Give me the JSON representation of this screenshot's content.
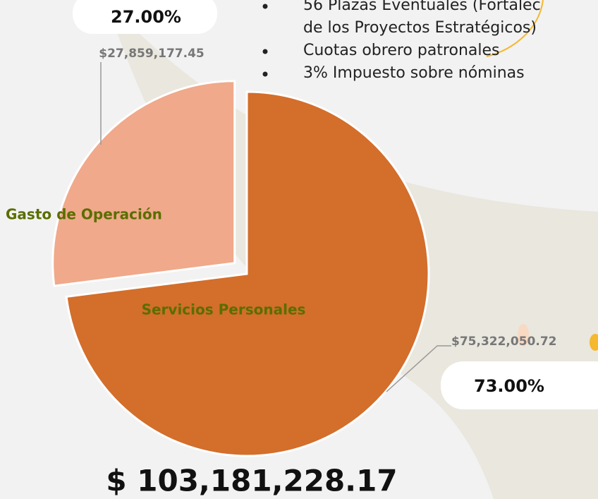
{
  "chart_data": {
    "type": "pie",
    "categories": [
      "Servicios Personales",
      "Gasto de Operación"
    ],
    "values": [
      73,
      27
    ],
    "value_labels": [
      "73.00%",
      "27.00%"
    ],
    "amount_labels": [
      "$75,322,050.72",
      "$27,859,177.45"
    ],
    "colors": [
      "#d36e2b",
      "#f0a98a"
    ],
    "total_label": "$ 103,181,228.17",
    "bullets": [
      "56 Plazas Eventuales (Fortalec",
      "de los Proyectos Estratégicos)",
      "Cuotas obrero patronales",
      "3% Impuesto sobre nóminas"
    ]
  }
}
